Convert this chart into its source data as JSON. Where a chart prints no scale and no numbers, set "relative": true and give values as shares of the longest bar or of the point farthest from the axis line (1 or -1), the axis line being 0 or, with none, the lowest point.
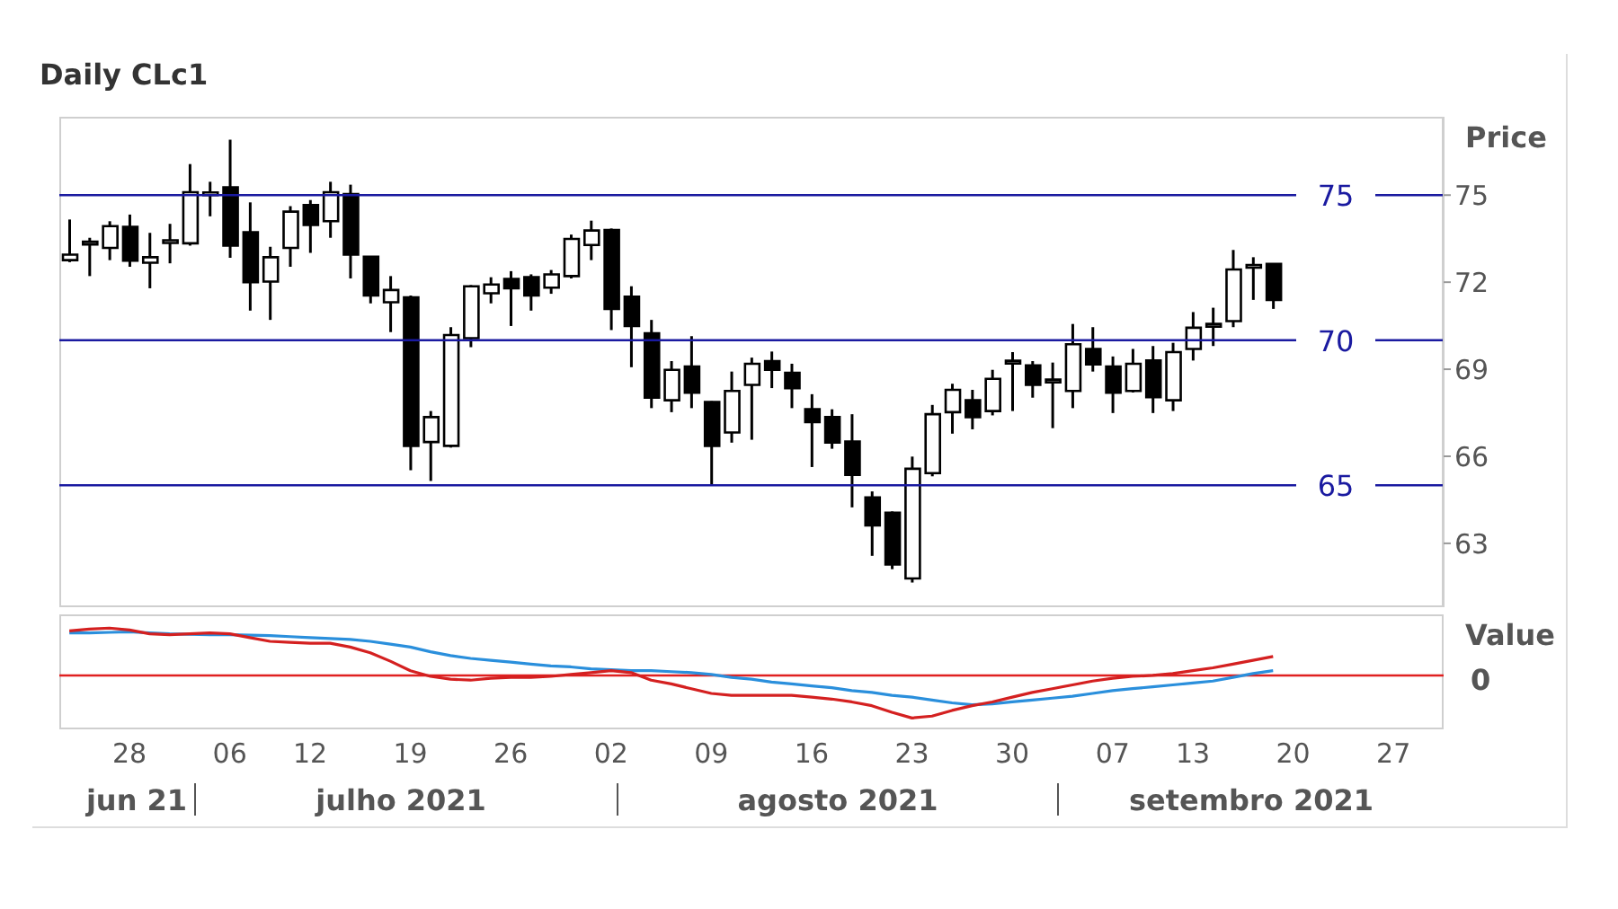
{
  "chart_data": [
    {
      "type": "candlestick",
      "title": "Daily CLc1",
      "ylabel": "Price",
      "color": "#000000",
      "categories": [
        null,
        null,
        null,
        "28",
        null,
        null,
        null,
        null,
        "06",
        null,
        null,
        null,
        "12",
        null,
        null,
        null,
        null,
        "19",
        null,
        null,
        null,
        null,
        "26",
        null,
        null,
        null,
        null,
        "02",
        null,
        null,
        null,
        null,
        "09",
        null,
        null,
        null,
        null,
        "16",
        null,
        null,
        null,
        null,
        "23",
        null,
        null,
        null,
        null,
        "30",
        null,
        null,
        null,
        null,
        "07",
        null,
        null,
        null,
        "13",
        null,
        null,
        null,
        null,
        "20",
        null,
        null,
        null,
        null,
        "27",
        null,
        null
      ],
      "ohlc": [
        [
          72.76,
          74.16,
          72.69,
          72.95
        ],
        [
          73.3,
          73.53,
          72.21,
          73.35
        ],
        [
          73.18,
          74.1,
          72.76,
          73.93
        ],
        [
          73.91,
          74.33,
          72.53,
          72.74
        ],
        [
          72.67,
          73.7,
          71.79,
          72.86
        ],
        [
          73.35,
          74.01,
          72.65,
          73.4
        ],
        [
          73.34,
          76.07,
          73.26,
          75.1
        ],
        [
          75.0,
          75.46,
          74.27,
          75.05
        ],
        [
          75.27,
          76.91,
          72.84,
          73.26
        ],
        [
          73.72,
          74.75,
          71.02,
          72.0
        ],
        [
          72.02,
          73.22,
          70.7,
          72.86
        ],
        [
          73.18,
          74.62,
          72.53,
          74.43
        ],
        [
          74.66,
          74.83,
          73.01,
          73.97
        ],
        [
          74.1,
          75.46,
          73.53,
          75.1
        ],
        [
          75.04,
          75.36,
          72.13,
          72.95
        ],
        [
          72.88,
          72.9,
          71.27,
          71.54
        ],
        [
          71.31,
          72.21,
          70.28,
          71.73
        ],
        [
          71.48,
          71.54,
          65.52,
          66.36
        ],
        [
          66.49,
          67.56,
          65.15,
          67.35
        ],
        [
          66.36,
          70.45,
          66.3,
          70.18
        ],
        [
          70.07,
          71.9,
          69.76,
          71.86
        ],
        [
          71.62,
          72.17,
          71.27,
          71.92
        ],
        [
          72.11,
          72.38,
          70.49,
          71.79
        ],
        [
          72.17,
          72.27,
          71.02,
          71.54
        ],
        [
          71.81,
          72.42,
          71.6,
          72.27
        ],
        [
          72.21,
          73.64,
          72.13,
          73.49
        ],
        [
          73.28,
          74.12,
          72.76,
          73.78
        ],
        [
          73.8,
          73.85,
          70.35,
          71.08
        ],
        [
          71.5,
          71.86,
          69.07,
          70.49
        ],
        [
          70.24,
          70.7,
          67.66,
          68.02
        ],
        [
          67.93,
          69.28,
          67.52,
          68.98
        ],
        [
          69.09,
          70.14,
          67.66,
          68.19
        ],
        [
          67.87,
          67.9,
          65.04,
          66.36
        ],
        [
          66.82,
          68.92,
          66.47,
          68.25
        ],
        [
          68.46,
          69.4,
          66.57,
          69.19
        ],
        [
          69.28,
          69.61,
          68.35,
          68.98
        ],
        [
          68.88,
          69.19,
          67.66,
          68.35
        ],
        [
          67.62,
          68.14,
          65.63,
          67.18
        ],
        [
          67.35,
          67.62,
          66.26,
          66.47
        ],
        [
          66.51,
          67.45,
          64.24,
          65.36
        ],
        [
          64.58,
          64.79,
          62.57,
          63.62
        ],
        [
          64.06,
          64.1,
          62.11,
          62.27
        ],
        [
          61.79,
          65.99,
          61.65,
          65.57
        ],
        [
          65.42,
          67.77,
          65.31,
          67.45
        ],
        [
          67.52,
          68.5,
          66.78,
          68.29
        ],
        [
          67.93,
          68.29,
          66.93,
          67.35
        ],
        [
          67.56,
          68.98,
          67.41,
          68.67
        ],
        [
          69.2,
          69.59,
          67.56,
          69.25
        ],
        [
          69.13,
          69.28,
          68.02,
          68.46
        ],
        [
          68.55,
          69.23,
          66.97,
          68.6
        ],
        [
          68.25,
          70.56,
          67.66,
          69.86
        ],
        [
          69.7,
          70.45,
          68.92,
          69.17
        ],
        [
          69.09,
          69.44,
          67.49,
          68.19
        ],
        [
          68.25,
          69.7,
          68.2,
          69.19
        ],
        [
          69.3,
          69.8,
          67.49,
          68.04
        ],
        [
          67.93,
          69.91,
          67.56,
          69.59
        ],
        [
          69.7,
          70.97,
          69.3,
          70.43
        ],
        [
          70.47,
          71.12,
          69.8,
          70.5
        ],
        [
          70.66,
          73.11,
          70.45,
          72.44
        ],
        [
          72.5,
          72.86,
          71.39,
          72.55
        ],
        [
          72.63,
          72.65,
          71.08,
          71.39
        ],
        null,
        null,
        null,
        null,
        null,
        null,
        null,
        null
      ],
      "ylim": [
        60.8,
        77.7
      ],
      "yticks": [
        63,
        66,
        69,
        72,
        75
      ],
      "tick_labels": "y",
      "ref_lines": [
        {
          "axis": "y",
          "value": 75,
          "label": "75",
          "color": "#1a1aa0"
        },
        {
          "axis": "y",
          "value": 70,
          "label": "70",
          "color": "#1a1aa0"
        },
        {
          "axis": "y",
          "value": 65,
          "label": "65",
          "color": "#1a1aa0"
        }
      ]
    },
    {
      "type": "line",
      "ylabel": "Value",
      "relative": true,
      "marker": "none",
      "tick_labels": "x",
      "categories": [
        null,
        null,
        null,
        "28",
        null,
        null,
        null,
        null,
        "06",
        null,
        null,
        null,
        "12",
        null,
        null,
        null,
        null,
        "19",
        null,
        null,
        null,
        null,
        "26",
        null,
        null,
        null,
        null,
        "02",
        null,
        null,
        null,
        null,
        "09",
        null,
        null,
        null,
        null,
        "16",
        null,
        null,
        null,
        null,
        "23",
        null,
        null,
        null,
        null,
        "30",
        null,
        null,
        null,
        null,
        "07",
        null,
        null,
        null,
        "13",
        null,
        null,
        null,
        null,
        "20",
        null,
        null,
        null,
        null,
        "27",
        null,
        null
      ],
      "series": [
        {
          "color": "#2a8fdc",
          "values": [
            0.9,
            0.9,
            0.91,
            0.92,
            0.9,
            0.88,
            0.87,
            0.86,
            0.86,
            0.85,
            0.84,
            0.82,
            0.8,
            0.78,
            0.76,
            0.72,
            0.66,
            0.6,
            0.5,
            0.42,
            0.36,
            0.32,
            0.28,
            0.24,
            0.2,
            0.18,
            0.14,
            0.12,
            0.1,
            0.1,
            0.08,
            0.06,
            0.02,
            -0.04,
            -0.08,
            -0.14,
            -0.18,
            -0.22,
            -0.26,
            -0.32,
            -0.36,
            -0.42,
            -0.46,
            -0.52,
            -0.58,
            -0.62,
            -0.6,
            -0.56,
            -0.52,
            -0.48,
            -0.44,
            -0.38,
            -0.32,
            -0.28,
            -0.24,
            -0.2,
            -0.16,
            -0.12,
            -0.04,
            0.04,
            0.1,
            null,
            null,
            null,
            null,
            null,
            null,
            null,
            null
          ]
        },
        {
          "color": "#d42020",
          "values": [
            0.94,
            0.98,
            1.0,
            0.96,
            0.88,
            0.86,
            0.88,
            0.9,
            0.88,
            0.8,
            0.72,
            0.7,
            0.68,
            0.68,
            0.6,
            0.48,
            0.3,
            0.1,
            -0.02,
            -0.08,
            -0.1,
            -0.06,
            -0.04,
            -0.04,
            -0.02,
            0.02,
            0.06,
            0.1,
            0.06,
            -0.1,
            -0.18,
            -0.28,
            -0.38,
            -0.42,
            -0.42,
            -0.42,
            -0.42,
            -0.46,
            -0.5,
            -0.56,
            -0.64,
            -0.78,
            -0.9,
            -0.86,
            -0.74,
            -0.64,
            -0.56,
            -0.46,
            -0.36,
            -0.28,
            -0.2,
            -0.12,
            -0.06,
            -0.02,
            0,
            0.04,
            0.1,
            0.16,
            0.24,
            0.32,
            0.4,
            null,
            null,
            null,
            null,
            null,
            null,
            null,
            null
          ]
        }
      ],
      "ref_lines": [
        {
          "axis": "y",
          "value": 0,
          "label": "0",
          "color": "#e02020"
        }
      ],
      "annotations": [
        "jun 21",
        "julho 2021",
        "agosto 2021",
        "setembro 2021"
      ]
    }
  ]
}
